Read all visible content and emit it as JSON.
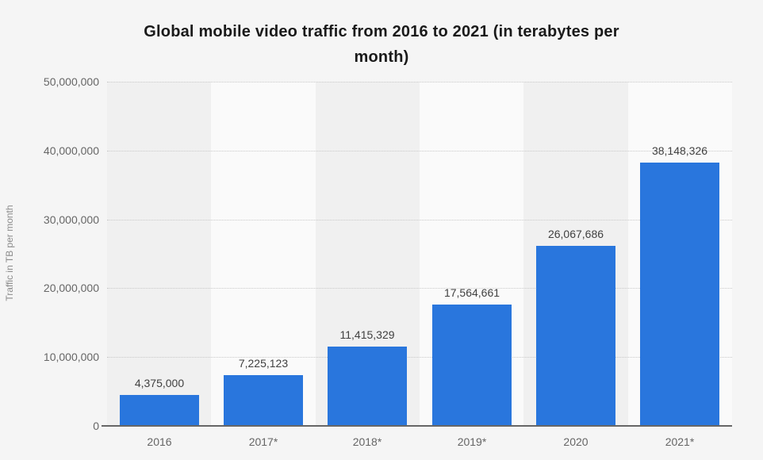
{
  "title": {
    "text": "Global mobile video traffic from 2016 to 2021 (in terabytes per month)",
    "lines": [
      "Global mobile video traffic from 2016 to 2021 (in terabytes per",
      "month)"
    ]
  },
  "chart_data": {
    "type": "bar",
    "title": "Global mobile video traffic from 2016 to 2021 (in terabytes per month)",
    "categories": [
      "2016",
      "2017*",
      "2018*",
      "2019*",
      "2020",
      "2021*"
    ],
    "values": [
      4375000,
      7225123,
      11415329,
      17564661,
      26067686,
      38148326
    ],
    "value_labels": [
      "4,375,000",
      "7,225,123",
      "11,415,329",
      "17,564,661",
      "26,067,686",
      "38,148,326"
    ],
    "xlabel": "",
    "ylabel": "Traffic in TB per month",
    "ylim": [
      0,
      50000000
    ],
    "ytick_interval": 10000000,
    "ytick_labels": [
      "0",
      "10,000,000",
      "20,000,000",
      "30,000,000",
      "40,000,000",
      "50,000,000"
    ],
    "grid": "horizontal-dotted",
    "legend": "none",
    "colors": {
      "bar": "#2976DD",
      "page_background": "#f5f5f5",
      "band_dark": "#f0f0f0",
      "band_light": "#fafafa",
      "gridline": "#c9c9c9",
      "axis_line": "#666666",
      "tick_label": "#666666",
      "value_label": "#404040",
      "title": "#1a1a1a",
      "axis_title": "#8c8c8c"
    }
  }
}
